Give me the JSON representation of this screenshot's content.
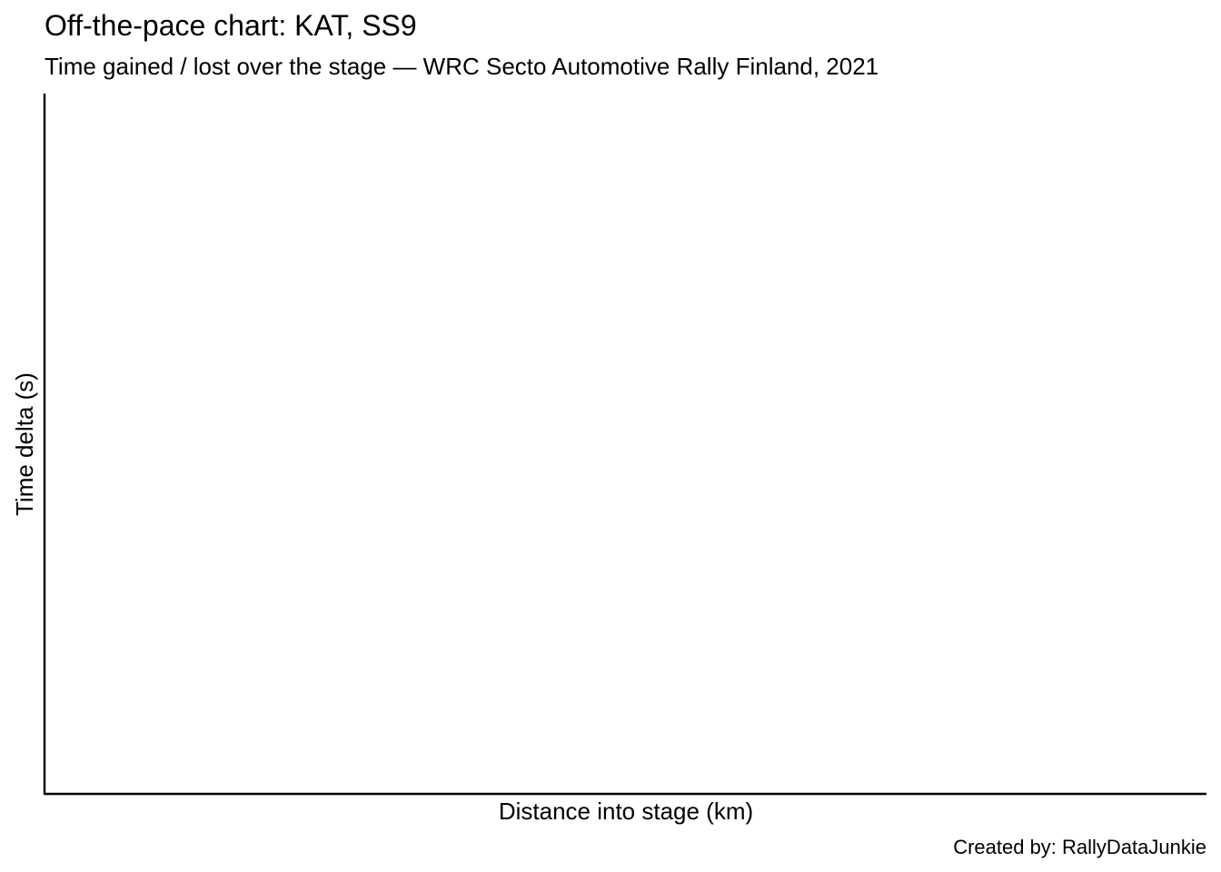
{
  "chart_data": {
    "type": "line",
    "title": "Off-the-pace chart: KAT, SS9",
    "subtitle": "Time gained / lost over the stage — WRC Secto Automotive Rally Finland, 2021",
    "xlabel": "Distance into stage (km)",
    "ylabel": "Time delta (s)",
    "caption": "Created by: RallyDataJunkie",
    "series": [],
    "grid": false,
    "axis_color": "#000000"
  }
}
